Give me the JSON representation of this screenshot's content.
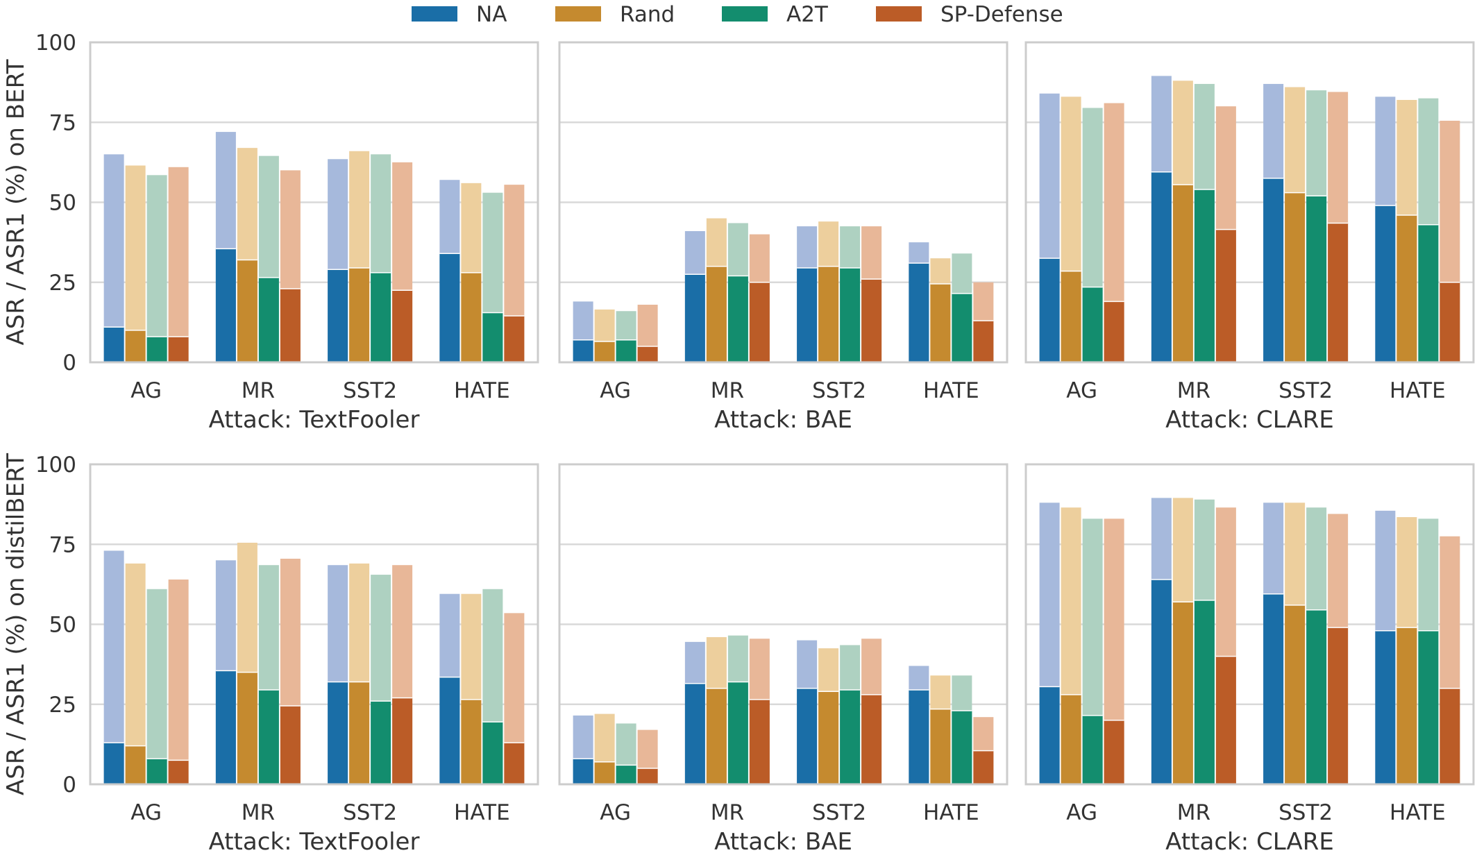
{
  "chart_data": {
    "type": "bar",
    "legend": {
      "placement": "top-center",
      "entries": [
        "NA",
        "Rand",
        "A2T",
        "SP-Defense"
      ]
    },
    "colors": {
      "NA": "#1a6ea7",
      "Rand": "#c58a2f",
      "A2T": "#138d6e",
      "SP-Defense": "#bb5c27"
    },
    "light_colors": {
      "NA": "#a6b9dc",
      "Rand": "#edcf9d",
      "A2T": "#aed1c1",
      "SP-Defense": "#e8b798"
    },
    "grid": true,
    "ylim": [
      0,
      100
    ],
    "yticks": [
      "0",
      "25",
      "50",
      "75",
      "100"
    ],
    "bar_encoding": "solid segment = ASR1, lighter full bar = ASR",
    "rows": [
      {
        "ylabel": "ASR / ASR1 (%) on BERT",
        "panels": [
          {
            "xlabel": "Attack: TextFooler",
            "categories": [
              "AG",
              "MR",
              "SST2",
              "HATE"
            ],
            "series": [
              {
                "name": "NA",
                "asr": [
                  65,
                  72,
                  63.5,
                  57
                ],
                "asr1": [
                  11,
                  35.5,
                  29,
                  34
                ]
              },
              {
                "name": "Rand",
                "asr": [
                  61.5,
                  67,
                  66,
                  56
                ],
                "asr1": [
                  10,
                  32,
                  29.5,
                  28
                ]
              },
              {
                "name": "A2T",
                "asr": [
                  58.5,
                  64.5,
                  65,
                  53
                ],
                "asr1": [
                  8,
                  26.5,
                  28,
                  15.5
                ]
              },
              {
                "name": "SP-Defense",
                "asr": [
                  61,
                  60,
                  62.5,
                  55.5
                ],
                "asr1": [
                  8,
                  23,
                  22.5,
                  14.5
                ]
              }
            ]
          },
          {
            "xlabel": "Attack: BAE",
            "categories": [
              "AG",
              "MR",
              "SST2",
              "HATE"
            ],
            "series": [
              {
                "name": "NA",
                "asr": [
                  19,
                  41,
                  42.5,
                  37.5
                ],
                "asr1": [
                  7,
                  27.5,
                  29.5,
                  31
                ]
              },
              {
                "name": "Rand",
                "asr": [
                  16.5,
                  45,
                  44,
                  32.5
                ],
                "asr1": [
                  6.5,
                  30,
                  30,
                  24.5
                ]
              },
              {
                "name": "A2T",
                "asr": [
                  16,
                  43.5,
                  42.5,
                  34
                ],
                "asr1": [
                  7,
                  27,
                  29.5,
                  21.5
                ]
              },
              {
                "name": "SP-Defense",
                "asr": [
                  18,
                  40,
                  42.5,
                  25
                ],
                "asr1": [
                  5,
                  25,
                  26,
                  13
                ]
              }
            ]
          },
          {
            "xlabel": "Attack: CLARE",
            "categories": [
              "AG",
              "MR",
              "SST2",
              "HATE"
            ],
            "series": [
              {
                "name": "NA",
                "asr": [
                  84,
                  89.5,
                  87,
                  83
                ],
                "asr1": [
                  32.5,
                  59.5,
                  57.5,
                  49
                ]
              },
              {
                "name": "Rand",
                "asr": [
                  83,
                  88,
                  86,
                  82
                ],
                "asr1": [
                  28.5,
                  55.5,
                  53,
                  46
                ]
              },
              {
                "name": "A2T",
                "asr": [
                  79.5,
                  87,
                  85,
                  82.5
                ],
                "asr1": [
                  23.5,
                  54,
                  52,
                  43
                ]
              },
              {
                "name": "SP-Defense",
                "asr": [
                  81,
                  80,
                  84.5,
                  75.5
                ],
                "asr1": [
                  19,
                  41.5,
                  43.5,
                  25
                ]
              }
            ]
          }
        ]
      },
      {
        "ylabel": "ASR / ASR1 (%) on distilBERT",
        "panels": [
          {
            "xlabel": "Attack: TextFooler",
            "categories": [
              "AG",
              "MR",
              "SST2",
              "HATE"
            ],
            "series": [
              {
                "name": "NA",
                "asr": [
                  73,
                  70,
                  68.5,
                  59.5
                ],
                "asr1": [
                  13,
                  35.5,
                  32,
                  33.5
                ]
              },
              {
                "name": "Rand",
                "asr": [
                  69,
                  75.5,
                  69,
                  59.5
                ],
                "asr1": [
                  12,
                  35,
                  32,
                  26.5
                ]
              },
              {
                "name": "A2T",
                "asr": [
                  61,
                  68.5,
                  65.5,
                  61
                ],
                "asr1": [
                  8,
                  29.5,
                  26,
                  19.5
                ]
              },
              {
                "name": "SP-Defense",
                "asr": [
                  64,
                  70.5,
                  68.5,
                  53.5
                ],
                "asr1": [
                  7.5,
                  24.5,
                  27,
                  13
                ]
              }
            ]
          },
          {
            "xlabel": "Attack: BAE",
            "categories": [
              "AG",
              "MR",
              "SST2",
              "HATE"
            ],
            "series": [
              {
                "name": "NA",
                "asr": [
                  21.5,
                  44.5,
                  45,
                  37
                ],
                "asr1": [
                  8,
                  31.5,
                  30,
                  29.5
                ]
              },
              {
                "name": "Rand",
                "asr": [
                  22,
                  46,
                  42.5,
                  34
                ],
                "asr1": [
                  7,
                  30,
                  29,
                  23.5
                ]
              },
              {
                "name": "A2T",
                "asr": [
                  19,
                  46.5,
                  43.5,
                  34
                ],
                "asr1": [
                  6,
                  32,
                  29.5,
                  23
                ]
              },
              {
                "name": "SP-Defense",
                "asr": [
                  17,
                  45.5,
                  45.5,
                  21
                ],
                "asr1": [
                  5,
                  26.5,
                  28,
                  10.5
                ]
              }
            ]
          },
          {
            "xlabel": "Attack: CLARE",
            "categories": [
              "AG",
              "MR",
              "SST2",
              "HATE"
            ],
            "series": [
              {
                "name": "NA",
                "asr": [
                  88,
                  89.5,
                  88,
                  85.5
                ],
                "asr1": [
                  30.5,
                  64,
                  59.5,
                  48
                ]
              },
              {
                "name": "Rand",
                "asr": [
                  86.5,
                  89.5,
                  88,
                  83.5
                ],
                "asr1": [
                  28,
                  57,
                  56,
                  49
                ]
              },
              {
                "name": "A2T",
                "asr": [
                  83,
                  89,
                  86.5,
                  83
                ],
                "asr1": [
                  21.5,
                  57.5,
                  54.5,
                  48
                ]
              },
              {
                "name": "SP-Defense",
                "asr": [
                  83,
                  86.5,
                  84.5,
                  77.5
                ],
                "asr1": [
                  20,
                  40,
                  49,
                  30
                ]
              }
            ]
          }
        ]
      }
    ]
  }
}
